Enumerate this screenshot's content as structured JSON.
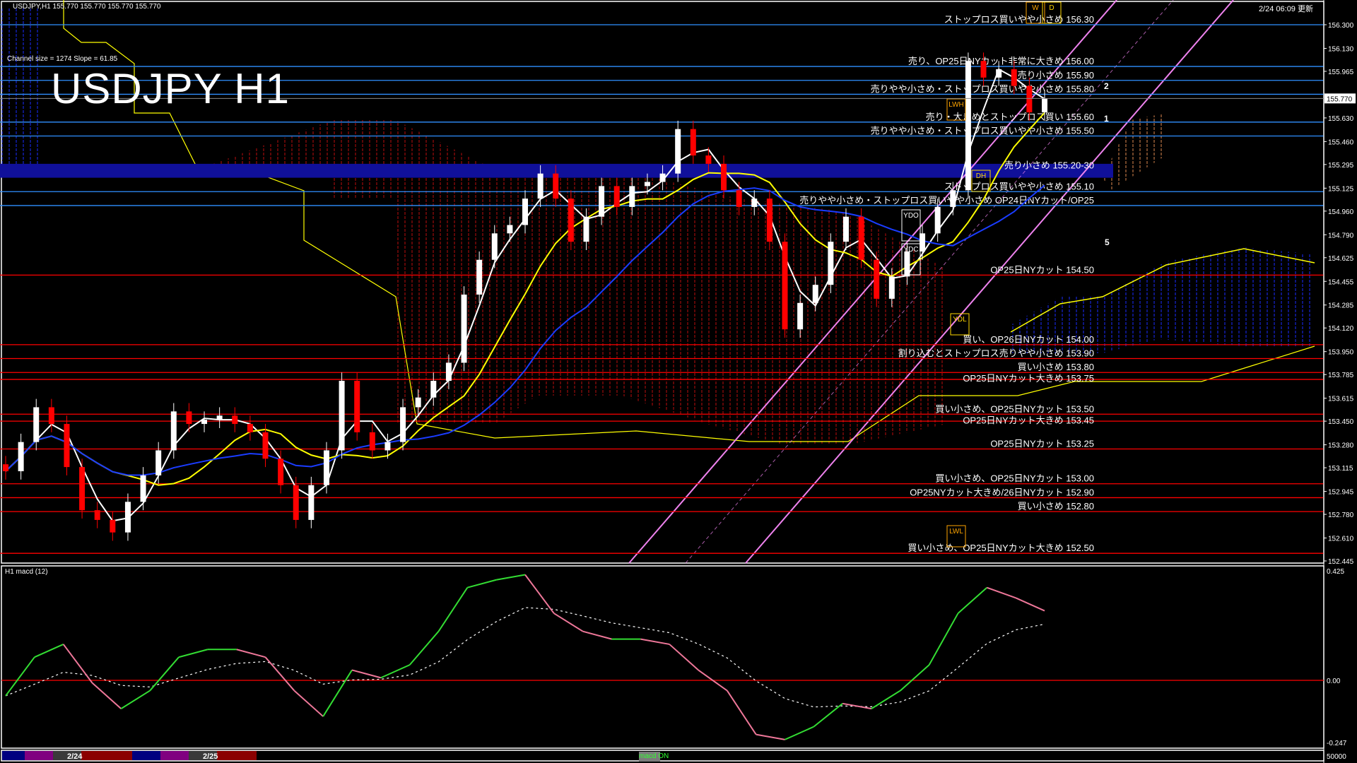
{
  "header": {
    "symbol_line": "USDJPY,H1  155.770 155.770 155.770 155.770",
    "channel_info": "Channel size = 1274 Slope = 61.85",
    "big_title": "USDJPY H1",
    "updated": "2/24 06:09 更新"
  },
  "macd_pane": {
    "title": "H1  macd (12)",
    "button": "macd ON",
    "volume_axis_label": "50000"
  },
  "session_bar": {
    "dates": [
      "2/24",
      "2/25"
    ],
    "colors": {
      "asia": "#000080",
      "europe": "#800080",
      "gap": "#3a3a3a",
      "ny": "#8b0000"
    }
  },
  "colors": {
    "background": "#000000",
    "resistance_line": "#2f8fff",
    "support_line": "#ff0000",
    "bull_candle": "#ffffff",
    "bear_candle": "#ff0000",
    "ma_fast": "#ffffff",
    "ma_mid": "#ffff00",
    "ma_slow": "#1a3cff",
    "channel": "#ee82ee",
    "macd_up": "#33dd33",
    "macd_down": "#ee7799",
    "zone_band": "#10109a"
  },
  "markers": {
    "wave_labels": [
      "2",
      "1",
      "5"
    ],
    "box_labels": [
      "W",
      "D",
      "LWH",
      "DH",
      "YDO",
      "YDC",
      "YDL",
      "LWL"
    ]
  },
  "chart_data": [
    {
      "type": "candlestick",
      "title": "USDJPY H1",
      "current_price": "155.770",
      "ylim": [
        152.445,
        156.3
      ],
      "y_ticks": [
        "156.300",
        "156.130",
        "155.965",
        "155.630",
        "155.460",
        "155.295",
        "155.125",
        "154.960",
        "154.790",
        "154.625",
        "154.455",
        "154.285",
        "154.120",
        "153.950",
        "153.785",
        "153.615",
        "153.450",
        "153.280",
        "153.115",
        "152.945",
        "152.780",
        "152.610",
        "152.445"
      ],
      "closes": [
        153.09,
        153.3,
        153.55,
        153.43,
        153.12,
        152.81,
        152.74,
        152.65,
        152.87,
        153.06,
        153.24,
        153.52,
        153.43,
        153.46,
        153.49,
        153.43,
        153.37,
        153.18,
        152.99,
        152.74,
        152.99,
        153.24,
        153.74,
        153.37,
        153.24,
        153.3,
        153.55,
        153.62,
        153.74,
        153.87,
        154.36,
        154.61,
        154.8,
        154.86,
        155.05,
        155.23,
        155.05,
        154.74,
        154.92,
        155.14,
        154.99,
        155.14,
        155.17,
        155.23,
        155.55,
        155.36,
        155.3,
        155.11,
        154.99,
        155.05,
        154.74,
        154.11,
        154.3,
        154.43,
        154.74,
        154.92,
        154.61,
        154.33,
        154.49,
        154.67,
        154.8,
        154.99,
        155.11,
        156.04,
        155.92,
        155.98,
        155.86,
        155.67,
        155.77
      ],
      "levels": [
        {
          "price": 156.3,
          "side": "resistance",
          "label": "ストップロス買いやや小さめ 156.30"
        },
        {
          "price": 156.0,
          "side": "resistance",
          "label": "売り、OP25日NYカット非常に大きめ 156.00"
        },
        {
          "price": 155.9,
          "side": "resistance",
          "label": "売り小さめ 155.90"
        },
        {
          "price": 155.8,
          "side": "resistance",
          "label": "売りやや小さめ・ストップロス買いやや小さめ 155.80"
        },
        {
          "price": 155.6,
          "side": "resistance",
          "label": "売り・大きめとストップロス買い 155.60"
        },
        {
          "price": 155.5,
          "side": "resistance",
          "label": "売りやや小さめ・ストップロス買いやや小さめ 155.50"
        },
        {
          "price": 155.25,
          "side": "zone",
          "label": "売り小さめ 155.20-30"
        },
        {
          "price": 155.1,
          "side": "resistance",
          "label": "ストップロス買いやや小さめ 155.10"
        },
        {
          "price": 155.0,
          "side": "resistance",
          "label": "売りやや小さめ・ストップロス買いやや小さめ OP24日NYカット/OP25"
        },
        {
          "price": 154.5,
          "side": "support",
          "label": "OP25日NYカット 154.50"
        },
        {
          "price": 154.0,
          "side": "support",
          "label": "買い、OP26日NYカット 154.00"
        },
        {
          "price": 153.9,
          "side": "support",
          "label": "割り込むとストップロス売りやや小さめ 153.90"
        },
        {
          "price": 153.8,
          "side": "support",
          "label": "買い小さめ 153.80"
        },
        {
          "price": 153.75,
          "side": "support",
          "label": "OP25日NYカット大きめ 153.75"
        },
        {
          "price": 153.5,
          "side": "support",
          "label": "買い小さめ、OP25日NYカット 153.50"
        },
        {
          "price": 153.45,
          "side": "support",
          "label": "OP25日NYカット大きめ 153.45"
        },
        {
          "price": 153.25,
          "side": "support",
          "label": "OP25日NYカット 153.25"
        },
        {
          "price": 153.0,
          "side": "support",
          "label": "買い小さめ、OP25日NYカット 153.00"
        },
        {
          "price": 152.9,
          "side": "support",
          "label": "OP25NYカット大きめ/26日NYカット 152.90"
        },
        {
          "price": 152.8,
          "side": "support",
          "label": "買い小さめ 152.80"
        },
        {
          "price": 152.5,
          "side": "support",
          "label": "買い小さめ、OP25日NYカット大きめ 152.50"
        }
      ]
    },
    {
      "type": "line",
      "title": "H1  macd (12)",
      "ylim": [
        -0.247,
        0.425
      ],
      "y_ticks": [
        "0.425",
        "0.00",
        "-0.247"
      ],
      "macd": [
        -0.06,
        0.09,
        0.14,
        -0.01,
        -0.11,
        -0.04,
        0.09,
        0.12,
        0.12,
        0.09,
        -0.04,
        -0.14,
        0.04,
        0.01,
        0.06,
        0.19,
        0.36,
        0.39,
        0.41,
        0.26,
        0.19,
        0.16,
        0.16,
        0.14,
        0.04,
        -0.04,
        -0.21,
        -0.23,
        -0.18,
        -0.09,
        -0.11,
        -0.04,
        0.06,
        0.26,
        0.36,
        0.32,
        0.27
      ]
    }
  ]
}
